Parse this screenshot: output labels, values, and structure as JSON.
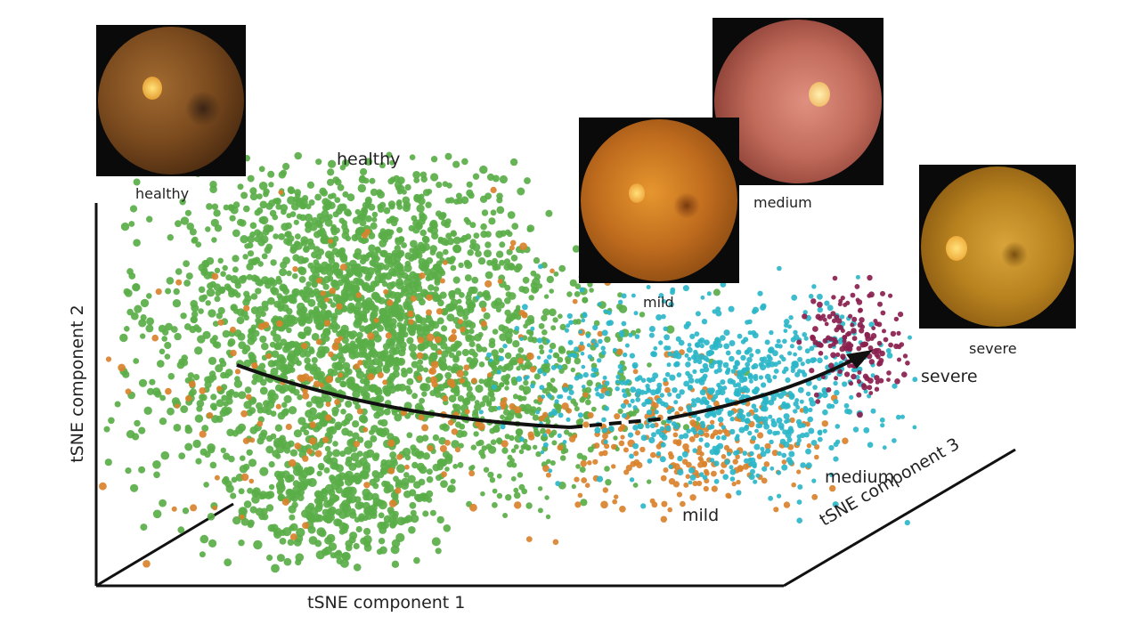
{
  "chart_data": {
    "type": "scatter",
    "title": "",
    "xlabel": "tSNE component 1",
    "ylabel": "tSNE component 2",
    "zlabel": "tSNE component 3",
    "grid": false,
    "legend": "none",
    "clusters": [
      {
        "label": "healthy",
        "color": "#5aae48"
      },
      {
        "label": "mild",
        "color": "#d9822b"
      },
      {
        "label": "medium",
        "color": "#2bb6c8"
      },
      {
        "label": "severe",
        "color": "#8a1f4e"
      }
    ],
    "trajectory": {
      "from": "healthy",
      "to": "severe",
      "arrow": true
    }
  },
  "thumbnails": [
    {
      "label": "healthy",
      "tone": "#7a5326",
      "rim": "#2a1a0c"
    },
    {
      "label": "medium",
      "tone": "#c06a5a",
      "rim": "#5a2a22"
    },
    {
      "label": "mild",
      "tone": "#c06c1e",
      "rim": "#4a250a"
    },
    {
      "label": "severe",
      "tone": "#b8821f",
      "rim": "#4a320a"
    }
  ],
  "colors": {
    "axis": "#111111",
    "arrow": "#111111"
  }
}
